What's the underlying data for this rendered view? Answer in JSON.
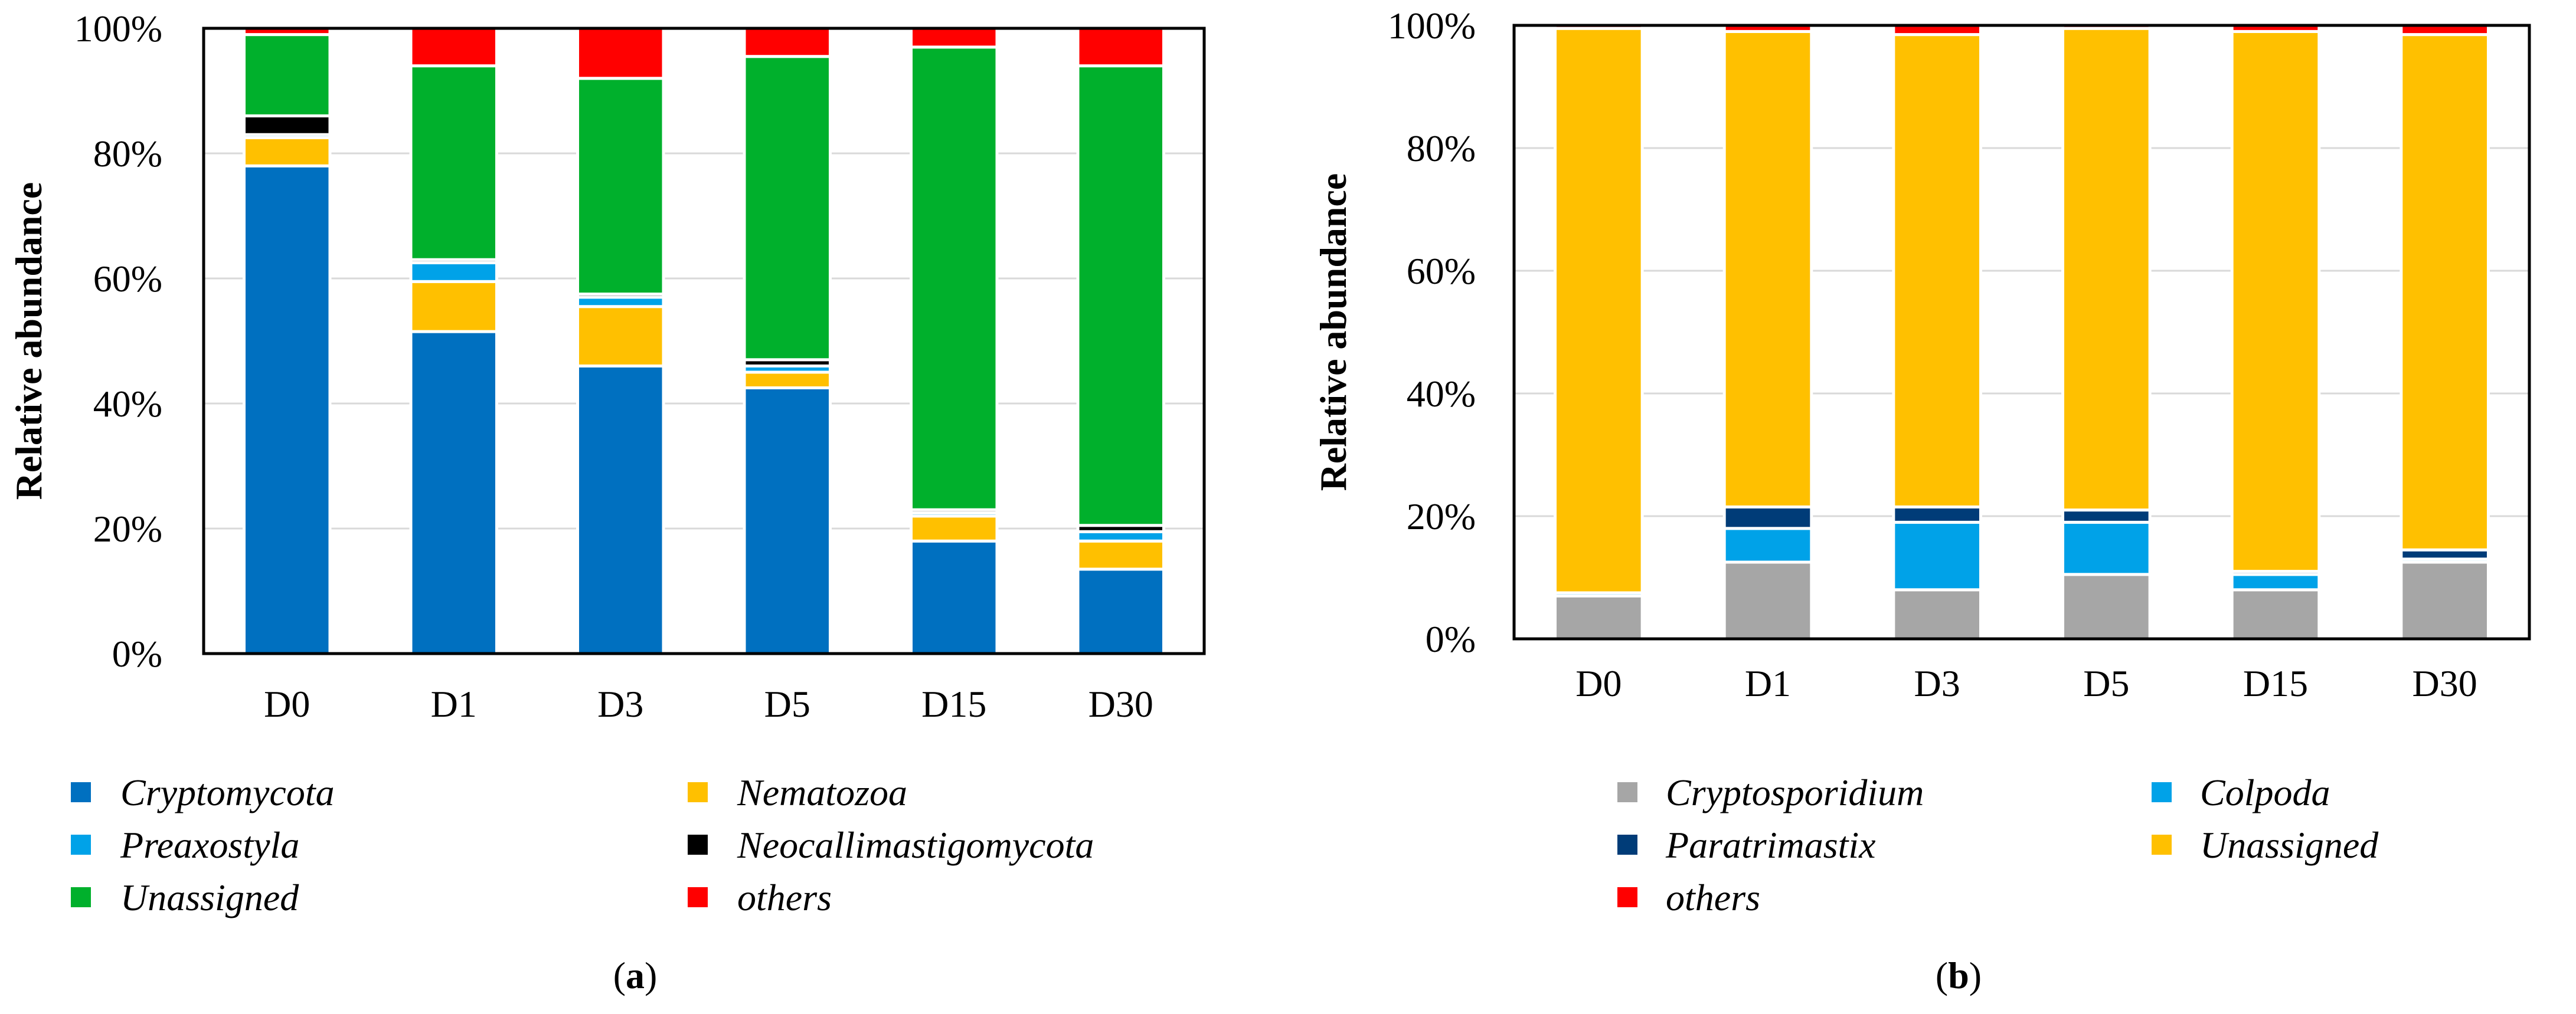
{
  "chart_data": [
    {
      "type": "bar",
      "stacked": true,
      "panel_open": "(",
      "panel_letter": "a",
      "panel_close": ")",
      "ylabel": "Relative abundance",
      "xlabel": "",
      "ylim": [
        0,
        100
      ],
      "yticks": [
        "0%",
        "20%",
        "40%",
        "60%",
        "80%",
        "100%"
      ],
      "categories": [
        "D0",
        "D1",
        "D3",
        "D5",
        "D15",
        "D30"
      ],
      "series": [
        {
          "name": "Cryptomycota",
          "color": "#0070c0",
          "values": [
            78,
            51.5,
            46,
            42.5,
            18,
            13.5
          ]
        },
        {
          "name": "Nematozoa",
          "color": "#ffc000",
          "values": [
            4.5,
            8,
            9.5,
            2.5,
            4,
            4.5
          ]
        },
        {
          "name": "Preaxostyla",
          "color": "#00a2e8",
          "values": [
            0.5,
            3,
            1.5,
            1,
            0.5,
            1.5
          ]
        },
        {
          "name": "Neocallimastigomycota",
          "color": "#000000",
          "values": [
            3,
            0.5,
            0.5,
            1,
            0.5,
            1
          ]
        },
        {
          "name": "Unassigned",
          "color": "#00b02c",
          "values": [
            13,
            31,
            34.5,
            48.5,
            74,
            73.5
          ]
        },
        {
          "name": "others",
          "color": "#ff0000",
          "values": [
            1,
            6,
            8,
            4.5,
            3,
            6
          ]
        }
      ]
    },
    {
      "type": "bar",
      "stacked": true,
      "panel_open": "(",
      "panel_letter": "b",
      "panel_close": ")",
      "ylabel": "Relative abundance",
      "xlabel": "",
      "ylim": [
        0,
        100
      ],
      "yticks": [
        "0%",
        "20%",
        "40%",
        "60%",
        "80%",
        "100%"
      ],
      "categories": [
        "D0",
        "D1",
        "D3",
        "D5",
        "D15",
        "D30"
      ],
      "series": [
        {
          "name": "Cryptosporidium",
          "color": "#a6a6a6",
          "values": [
            7,
            12.5,
            8,
            10.5,
            8,
            12.5
          ]
        },
        {
          "name": "Colpoda",
          "color": "#00a2e8",
          "values": [
            0.5,
            5.5,
            11,
            8.5,
            2.5,
            0.5
          ]
        },
        {
          "name": "Paratrimastix",
          "color": "#003c78",
          "values": [
            0,
            3.5,
            2.5,
            2,
            0.5,
            1.5
          ]
        },
        {
          "name": "Unassigned",
          "color": "#ffc000",
          "values": [
            92,
            77.5,
            77,
            78.5,
            88,
            84
          ]
        },
        {
          "name": "others",
          "color": "#ff0000",
          "values": [
            0.5,
            1,
            1.5,
            0.5,
            1,
            1.5
          ]
        }
      ]
    }
  ]
}
